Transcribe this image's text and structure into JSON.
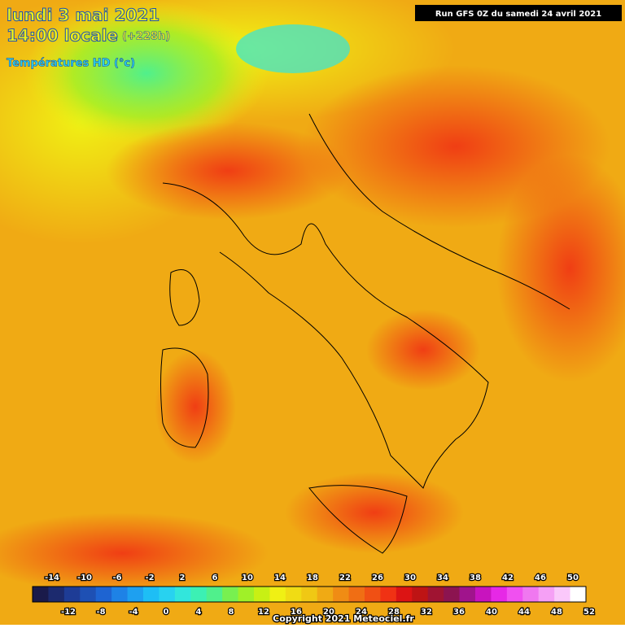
{
  "header": {
    "date": "lundi 3 mai 2021",
    "time": "14:00 locale",
    "lead": "(+228h)",
    "field": "Températures HD (°c)",
    "run": "Run GFS 0Z du samedi 24 avril 2021"
  },
  "legend": {
    "labels_top": [
      -14,
      -10,
      -6,
      -2,
      2,
      6,
      10,
      14,
      18,
      22,
      26,
      30,
      34,
      38,
      42,
      46,
      50
    ],
    "labels_bottom": [
      -12,
      -8,
      -4,
      0,
      4,
      8,
      12,
      16,
      20,
      24,
      28,
      32,
      36,
      40,
      44,
      48,
      52
    ],
    "colors": [
      "#1a1a4a",
      "#1c2a6e",
      "#1e3c96",
      "#1e50b4",
      "#1e64d2",
      "#1e82e6",
      "#1ea0f0",
      "#1ebef5",
      "#28d2f0",
      "#32e6dc",
      "#3cf0b4",
      "#50f08c",
      "#78f050",
      "#a0f028",
      "#c8f014",
      "#f0f014",
      "#f0dc14",
      "#f0c814",
      "#f0aa14",
      "#f08c14",
      "#f06e14",
      "#f05014",
      "#f03214",
      "#dc1414",
      "#be1414",
      "#a01432",
      "#8c1450",
      "#a0148c",
      "#c814be",
      "#e628e6",
      "#f050f0",
      "#f078f0",
      "#f5a0f5",
      "#fac8fa",
      "#ffffff"
    ]
  },
  "footer": {
    "copyright": "Copyright 2021 Meteociel.fr"
  }
}
